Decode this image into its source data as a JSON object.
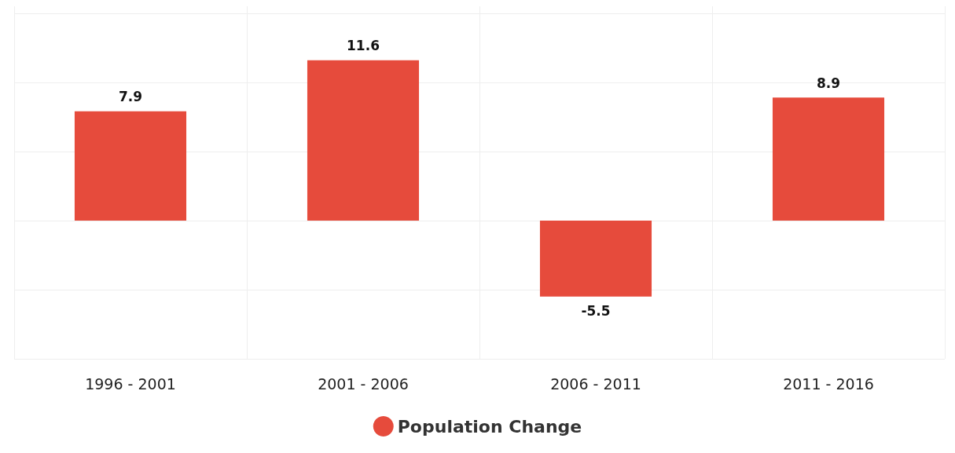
{
  "chart_data": {
    "type": "bar",
    "categories": [
      "1996 - 2001",
      "2001 - 2006",
      "2006 - 2011",
      "2011 - 2016"
    ],
    "series": [
      {
        "name": "Population Change",
        "color": "#e64b3c",
        "values": [
          7.9,
          11.6,
          -5.5,
          8.9
        ]
      }
    ],
    "data_labels": true,
    "legend": "bottom",
    "grid": true,
    "tick_labels": "x",
    "ylim": [
      -10,
      15.5
    ],
    "yticks": [
      {
        "value": -10,
        "label": null
      },
      {
        "value": -5,
        "label": null
      },
      {
        "value": 0,
        "label": null
      },
      {
        "value": 5,
        "label": null
      },
      {
        "value": 10,
        "label": null
      },
      {
        "value": 15,
        "label": null
      }
    ]
  }
}
